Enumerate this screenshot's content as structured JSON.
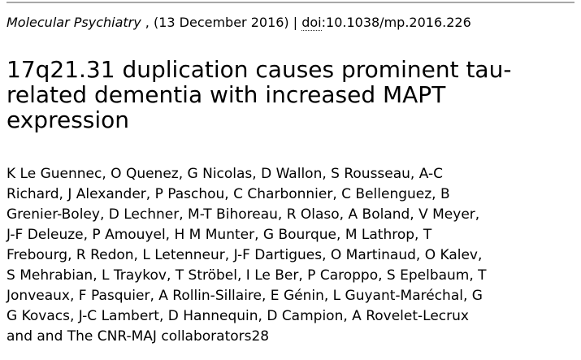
{
  "article": {
    "citation": {
      "journal": "Molecular Psychiatry",
      "date_separator": " , (13 December 2016) | ",
      "doi_label": "doi",
      "doi_value": ":10.1038/mp.2016.226"
    },
    "title": "17q21.31 duplication causes prominent tau-related dementia with increased MAPT expression",
    "author_lines": [
      "K Le Guennec, O Quenez, G Nicolas, D Wallon, S Rousseau, A-C",
      "Richard, J Alexander, P Paschou, C Charbonnier, C Bellenguez, B",
      "Grenier-Boley, D Lechner, M-T Bihoreau, R Olaso, A Boland, V Meyer,",
      "J-F Deleuze, P Amouyel, H M Munter, G Bourque, M Lathrop, T",
      "Frebourg, R Redon, L Letenneur, J-F Dartigues, O Martinaud, O Kalev,",
      "S Mehrabian, L Traykov, T Ströbel, I Le Ber, P Caroppo, S Epelbaum, T",
      "Jonveaux, F Pasquier, A Rollin-Sillaire, E Génin, L Guyant-Maréchal, G",
      "G Kovacs, J-C Lambert, D Hannequin, D Campion, A Rovelet-Lecrux",
      "and and The CNR-MAJ collaborators28"
    ]
  },
  "colors": {
    "text": "#000000",
    "top_rule": "#a8a8a8",
    "background": "#ffffff"
  }
}
